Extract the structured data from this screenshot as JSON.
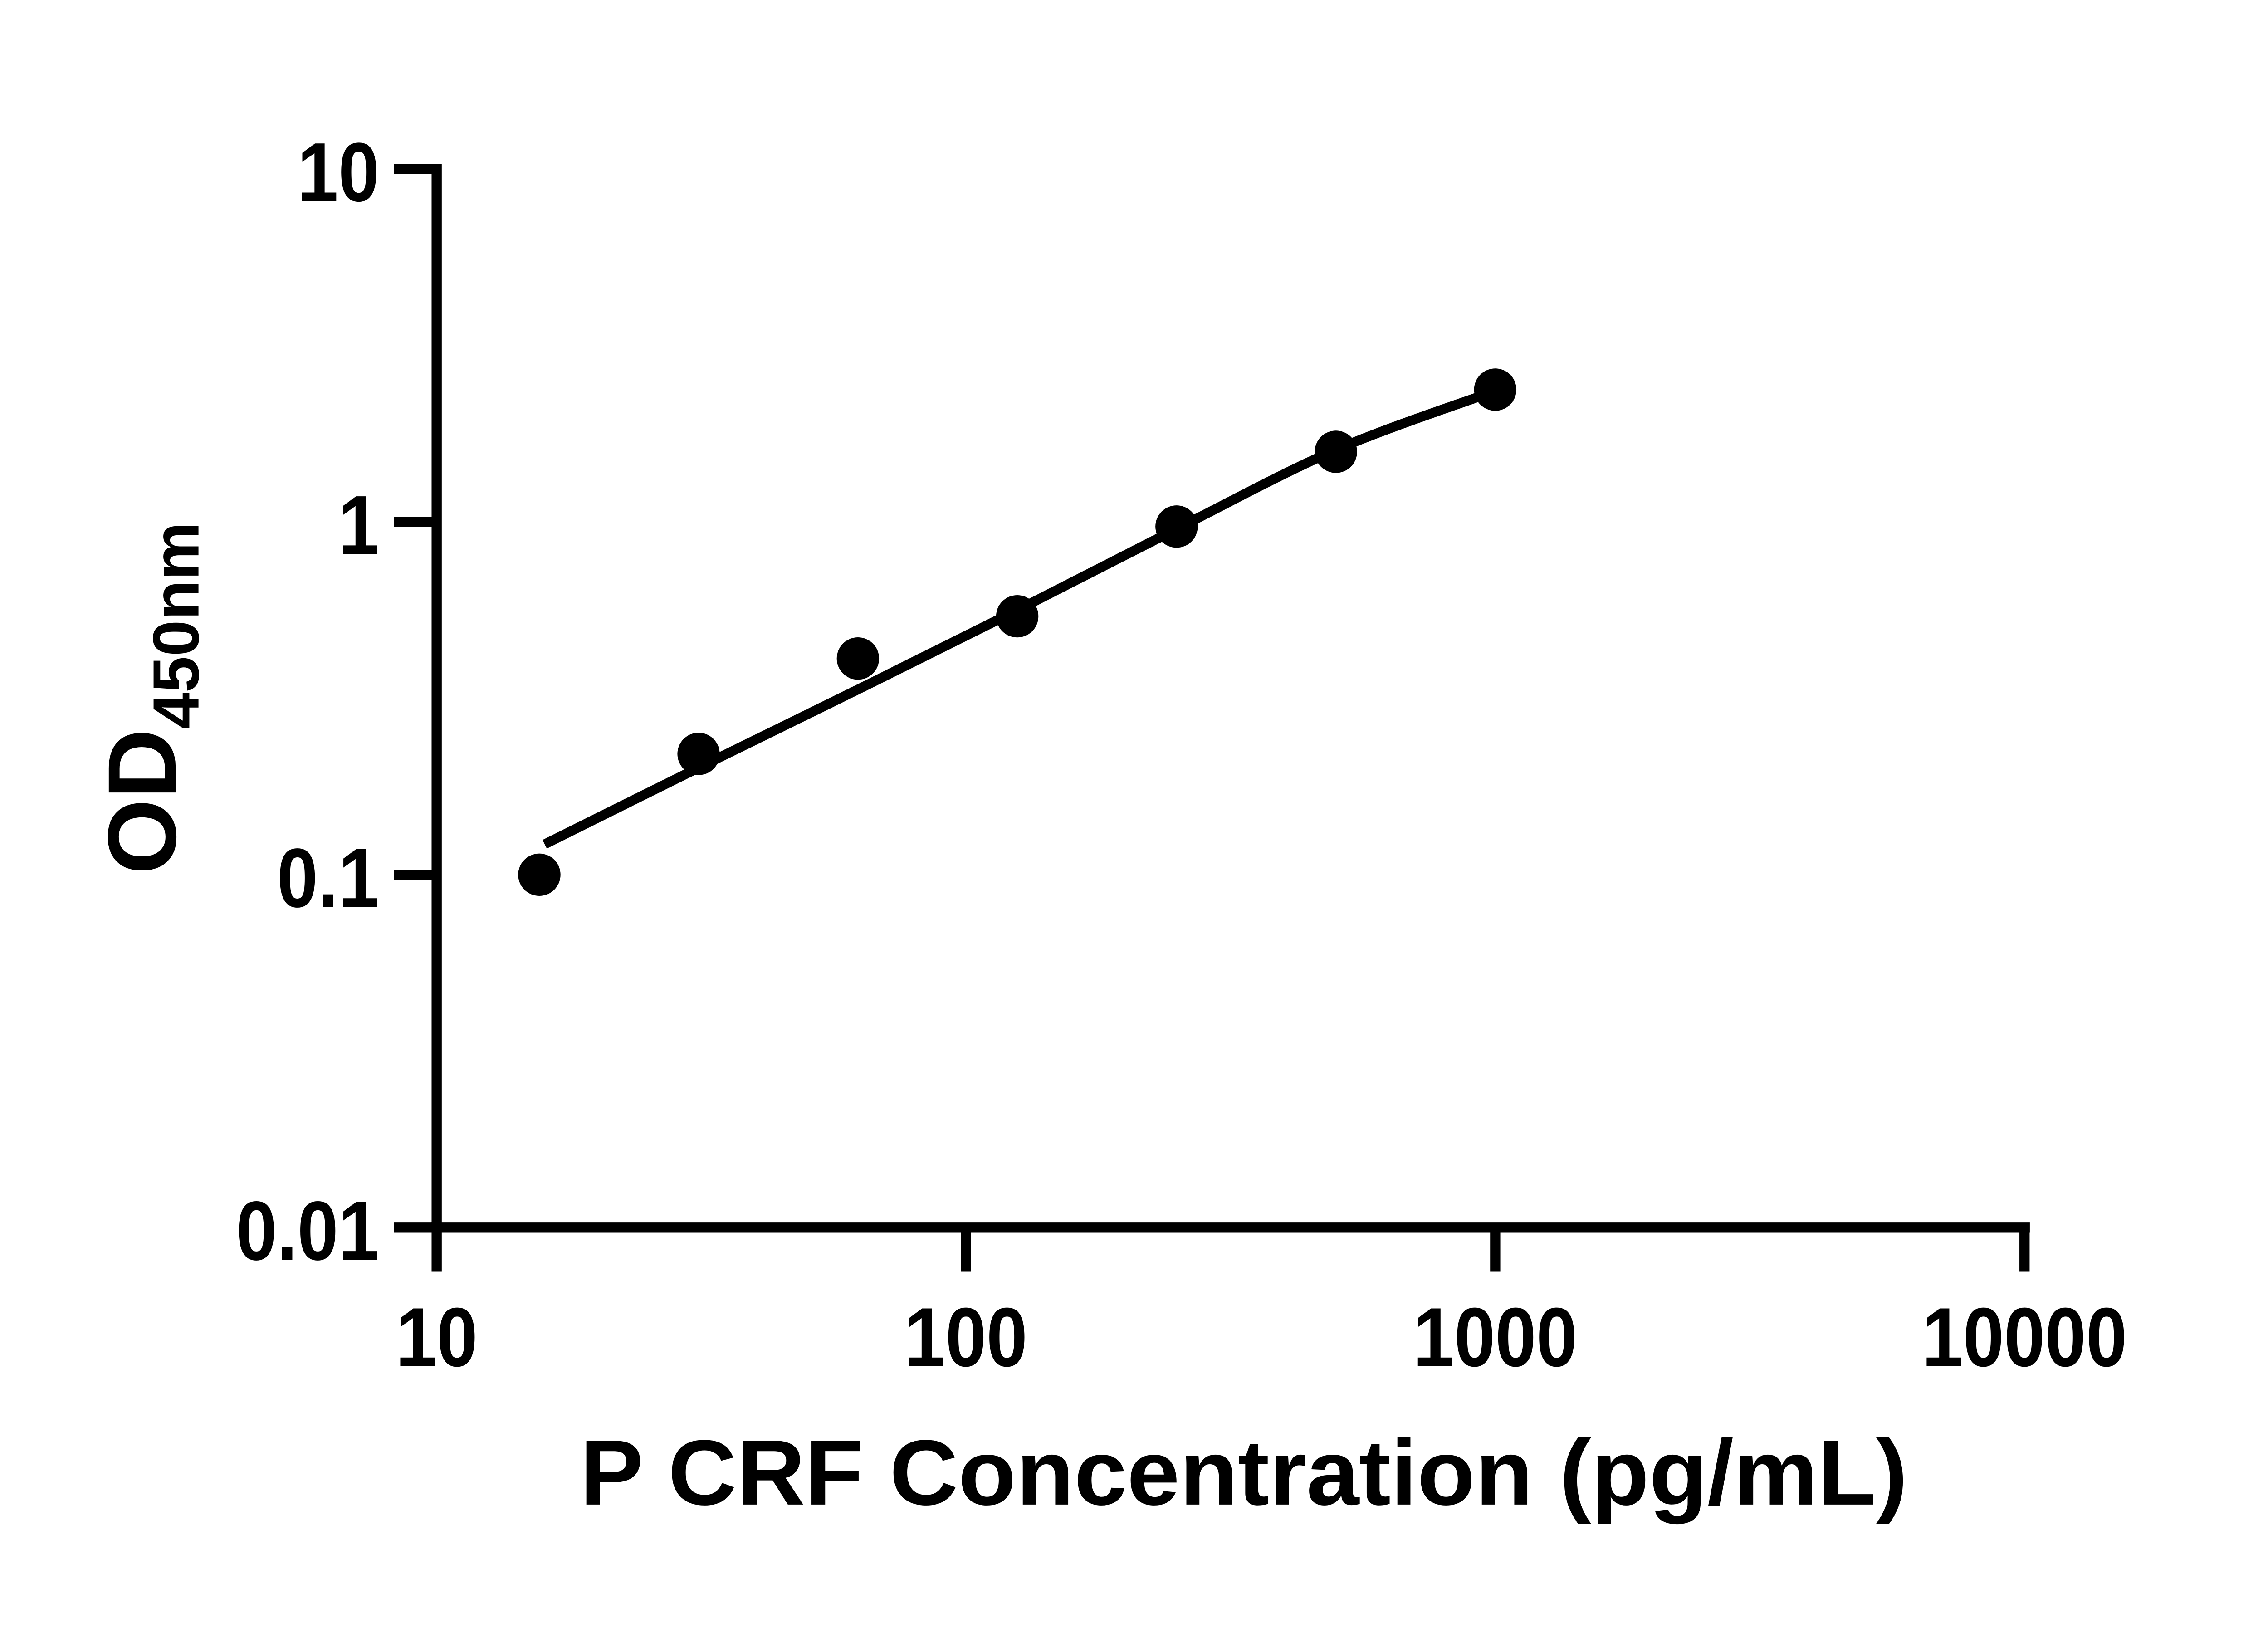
{
  "figure": {
    "background_color": "#ffffff",
    "ink_color": "#000000"
  },
  "chart_data": {
    "type": "scatter",
    "title": "",
    "xlabel": "P CRF Concentration (pg/mL)",
    "ylabel": "OD450nm",
    "ylabel_main": "OD",
    "ylabel_sub": "450nm",
    "x_scale": "log10",
    "y_scale": "log10",
    "xlim": [
      10,
      10000
    ],
    "ylim": [
      0.01,
      10
    ],
    "x_ticks": {
      "values": [
        10,
        100,
        1000,
        10000
      ],
      "labels": [
        "10",
        "100",
        "1000",
        "10000"
      ]
    },
    "y_ticks": {
      "values": [
        10,
        1,
        0.1,
        0.01
      ],
      "labels": [
        "10",
        "1",
        "0.1",
        "0.01"
      ]
    },
    "grid": false,
    "legend": false,
    "marker": {
      "shape": "filled-circle",
      "color": "#000000"
    },
    "line": {
      "color": "#000000"
    },
    "series": [
      {
        "name": "standard-curve-points",
        "points": [
          {
            "x": 15.63,
            "y": 0.1
          },
          {
            "x": 31.25,
            "y": 0.22
          },
          {
            "x": 62.5,
            "y": 0.41
          },
          {
            "x": 125,
            "y": 0.54
          },
          {
            "x": 250,
            "y": 0.97
          },
          {
            "x": 500,
            "y": 1.58
          },
          {
            "x": 1000,
            "y": 2.37
          }
        ]
      }
    ],
    "fit_curve": {
      "name": "fitted-standard-curve",
      "points": [
        {
          "x": 16,
          "y": 0.122
        },
        {
          "x": 31.25,
          "y": 0.201
        },
        {
          "x": 62.5,
          "y": 0.335
        },
        {
          "x": 125,
          "y": 0.562
        },
        {
          "x": 250,
          "y": 0.955
        },
        {
          "x": 500,
          "y": 1.6
        },
        {
          "x": 1000,
          "y": 2.35
        }
      ]
    }
  }
}
